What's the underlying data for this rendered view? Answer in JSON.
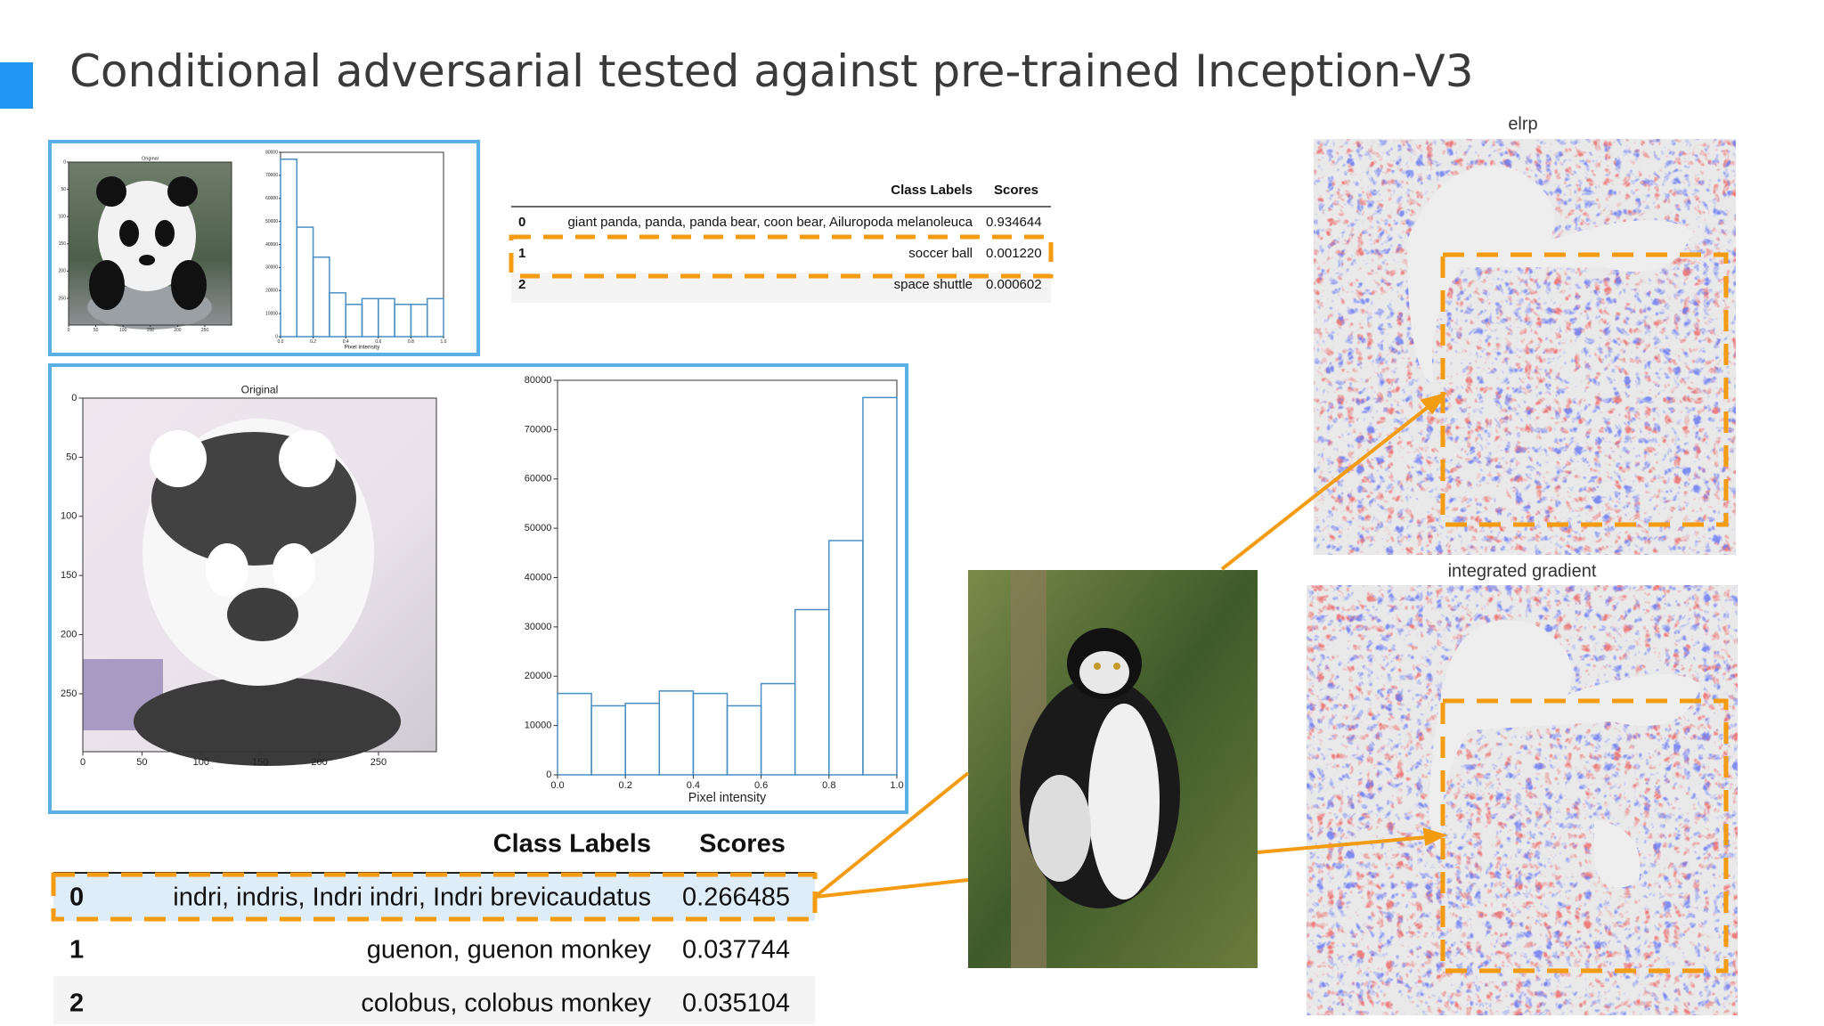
{
  "title": "Conditional adversarial tested against pre-trained Inception-V3",
  "small_panel": {
    "image": {
      "title": "Original",
      "xlim": [
        0,
        299
      ],
      "ylim": [
        0,
        299
      ],
      "xticks": [
        0,
        50,
        100,
        150,
        200,
        250
      ],
      "yticks": [
        0,
        50,
        100,
        150,
        200,
        250
      ]
    },
    "histogram": {
      "type": "histogram",
      "xlabel": "Pixel intensity",
      "bins": [
        0,
        0.1,
        0.2,
        0.3,
        0.4,
        0.5,
        0.6,
        0.7,
        0.8,
        0.9,
        1.0
      ],
      "counts": [
        77000,
        47500,
        34500,
        19000,
        14000,
        16500,
        16500,
        14000,
        14000,
        16500
      ],
      "xlim": [
        0,
        1
      ],
      "ylim": [
        0,
        80000
      ],
      "xticks": [
        {
          "value": 0,
          "label": "0.0"
        },
        0.2,
        0.4,
        0.6,
        0.8,
        {
          "value": 1,
          "label": "1.0"
        }
      ],
      "yticks": [
        0,
        10000,
        20000,
        30000,
        40000,
        50000,
        60000,
        70000,
        80000
      ]
    }
  },
  "small_table": {
    "columns": [
      "Class Labels",
      "Scores"
    ],
    "rows": [
      [
        "0",
        "giant panda, panda, panda bear, coon bear, Ailuropoda melanoleuca",
        "0.934644"
      ],
      [
        "1",
        "soccer ball",
        "0.001220"
      ],
      [
        "2",
        "space shuttle",
        "0.000602"
      ]
    ]
  },
  "large_panel": {
    "image": {
      "title": "Original",
      "xlim": [
        0,
        299
      ],
      "ylim": [
        0,
        299
      ],
      "xticks": [
        0,
        50,
        100,
        150,
        200,
        250
      ],
      "yticks": [
        0,
        50,
        100,
        150,
        200,
        250
      ]
    },
    "histogram": {
      "type": "histogram",
      "xlabel": "Pixel intensity",
      "bins": [
        0,
        0.1,
        0.2,
        0.3,
        0.4,
        0.5,
        0.6,
        0.7,
        0.8,
        0.9,
        1.0
      ],
      "counts": [
        16500,
        14000,
        14500,
        17000,
        16500,
        14000,
        18500,
        33500,
        47500,
        76500
      ],
      "xlim": [
        0,
        1
      ],
      "ylim": [
        0,
        80000
      ],
      "xticks": [
        {
          "value": 0,
          "label": "0.0"
        },
        0.2,
        0.4,
        0.6,
        0.8,
        {
          "value": 1,
          "label": "1.0"
        }
      ],
      "yticks": [
        0,
        10000,
        20000,
        30000,
        40000,
        50000,
        60000,
        70000,
        80000
      ]
    }
  },
  "large_table": {
    "columns": [
      "Class Labels",
      "Scores"
    ],
    "rows": [
      [
        "0",
        "indri, indris, Indri indri, Indri brevicaudatus",
        "0.266485"
      ],
      [
        "1",
        "guenon, guenon monkey",
        "0.037744"
      ],
      [
        "2",
        "colobus, colobus monkey",
        "0.035104"
      ]
    ]
  },
  "heatmaps": [
    {
      "title": "elrp"
    },
    {
      "title": "integrated gradient"
    }
  ]
}
